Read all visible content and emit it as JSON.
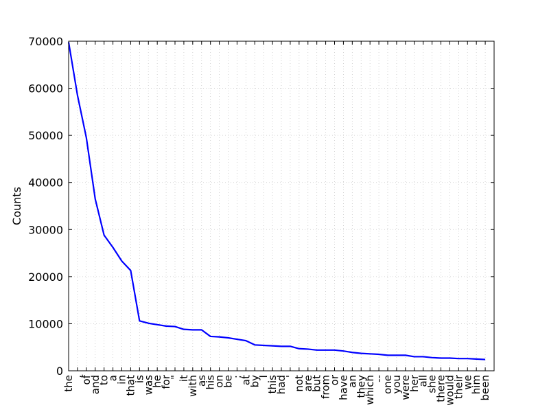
{
  "chart_data": {
    "type": "line",
    "title": "",
    "xlabel": "",
    "ylabel": "Counts",
    "ylim": [
      0,
      70000
    ],
    "yticks": [
      0,
      10000,
      20000,
      30000,
      40000,
      50000,
      60000,
      70000
    ],
    "grid": true,
    "line_color": "#0000ff",
    "categories": [
      "the",
      ",",
      "of",
      "and",
      "to",
      "a",
      "in",
      "that",
      "is",
      "was",
      "he",
      "for",
      "\"",
      "it",
      "with",
      "as",
      "his",
      "on",
      "be",
      ";",
      "at",
      "by",
      "I",
      "this",
      "had",
      "'",
      "not",
      "are",
      "but",
      "from",
      "or",
      "have",
      "an",
      "they",
      "which",
      "--",
      "one",
      "you",
      "were",
      "her",
      "all",
      "she",
      "there",
      "would",
      "their",
      "we",
      "him",
      "been"
    ],
    "values": [
      69800,
      58500,
      49500,
      36500,
      28800,
      26200,
      23300,
      21300,
      10600,
      10100,
      9800,
      9500,
      9400,
      8800,
      8700,
      8700,
      7300,
      7200,
      7000,
      6700,
      6400,
      5500,
      5400,
      5300,
      5200,
      5200,
      4700,
      4600,
      4400,
      4400,
      4400,
      4200,
      3900,
      3700,
      3600,
      3500,
      3300,
      3300,
      3300,
      3000,
      3000,
      2800,
      2700,
      2700,
      2600,
      2600,
      2500,
      2400
    ]
  }
}
